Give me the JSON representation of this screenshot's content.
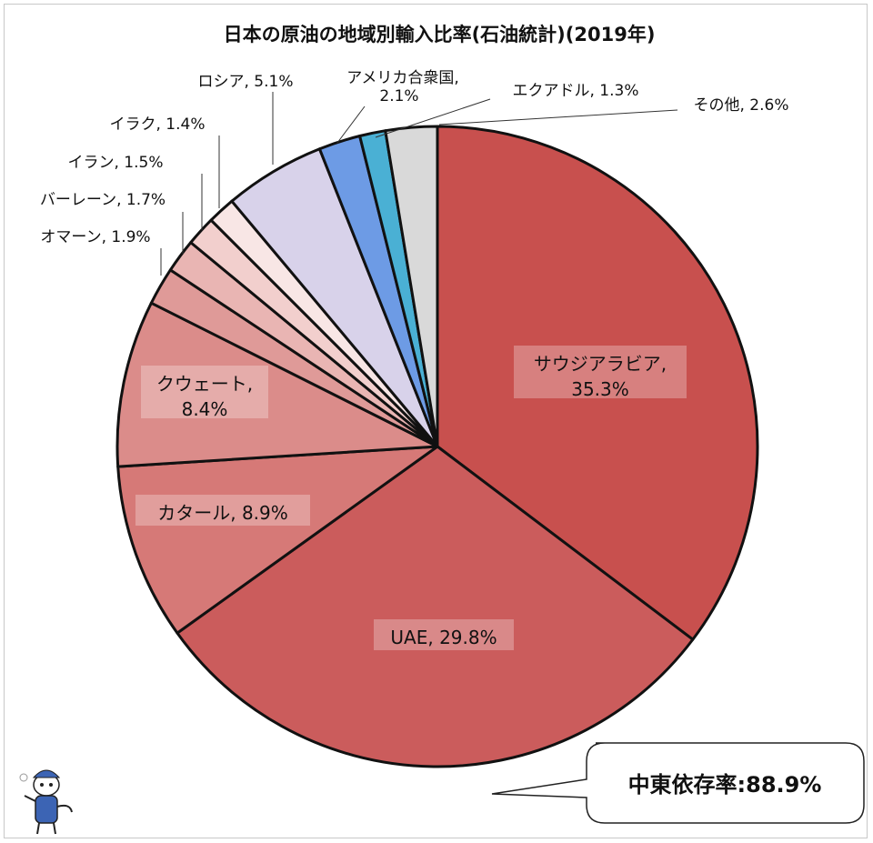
{
  "chart_data": {
    "type": "pie",
    "title": "日本の原油の地域別輸入比率(石油統計)(2019年)",
    "slices": [
      {
        "name": "サウジアラビア",
        "value": 35.3,
        "value_label": "35.3%",
        "label_line1": "サウジアラビア,",
        "label_line2": "35.3%",
        "color": "#c8504e"
      },
      {
        "name": "UAE",
        "value": 29.8,
        "value_label": "29.8%",
        "label_line1": "UAE, 29.8%",
        "label_line2": "",
        "color": "#cb5c5c"
      },
      {
        "name": "カタール",
        "value": 8.9,
        "value_label": "8.9%",
        "label_line1": "カタール, 8.9%",
        "label_line2": "",
        "color": "#d67977"
      },
      {
        "name": "クウェート",
        "value": 8.4,
        "value_label": "8.4%",
        "label_line1": "クウェート,",
        "label_line2": "8.4%",
        "color": "#db8c8a"
      },
      {
        "name": "オマーン",
        "value": 1.9,
        "value_label": "1.9%",
        "label_line1": "オマーン, 1.9%",
        "label_line2": "",
        "color": "#df9a98"
      },
      {
        "name": "バーレーン",
        "value": 1.7,
        "value_label": "1.7%",
        "label_line1": "バーレーン, 1.7%",
        "label_line2": "",
        "color": "#e9b5b3"
      },
      {
        "name": "イラン",
        "value": 1.5,
        "value_label": "1.5%",
        "label_line1": "イラン, 1.5%",
        "label_line2": "",
        "color": "#f2cfcd"
      },
      {
        "name": "イラク",
        "value": 1.4,
        "value_label": "1.4%",
        "label_line1": "イラク, 1.4%",
        "label_line2": "",
        "color": "#f8e6e5"
      },
      {
        "name": "ロシア",
        "value": 5.1,
        "value_label": "5.1%",
        "label_line1": "ロシア, 5.1%",
        "label_line2": "",
        "color": "#d8d2ea"
      },
      {
        "name": "アメリカ合衆国",
        "value": 2.1,
        "value_label": "2.1%",
        "label_line1": "アメリカ合衆国,",
        "label_line2": "2.1%",
        "color": "#6d9be5"
      },
      {
        "name": "エクアドル",
        "value": 1.3,
        "value_label": "1.3%",
        "label_line1": "エクアドル, 1.3%",
        "label_line2": "",
        "color": "#4ab0d4"
      },
      {
        "name": "その他",
        "value": 2.6,
        "value_label": "2.6%",
        "label_line1": "その他, 2.6%",
        "label_line2": "",
        "color": "#d9d9d9"
      }
    ],
    "start_angle": "12 o'clock, clockwise",
    "callout": "中東依存率:88.9%"
  }
}
